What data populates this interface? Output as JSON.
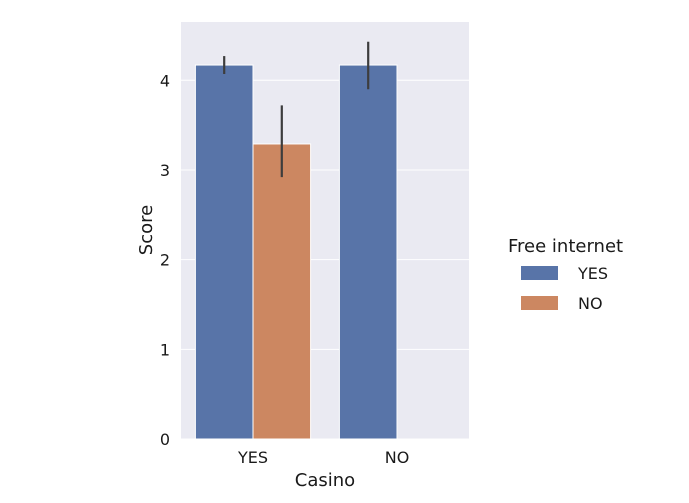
{
  "chart_data": {
    "type": "bar",
    "title": "",
    "xlabel": "Casino",
    "ylabel": "Score",
    "categories": [
      "YES",
      "NO"
    ],
    "ylim": [
      0,
      4.65
    ],
    "yticks": [
      0,
      1,
      2,
      3,
      4
    ],
    "grid": true,
    "legend": {
      "title": "Free internet",
      "placement": "right"
    },
    "series": [
      {
        "name": "YES",
        "color": "#5874a8",
        "values": [
          4.17,
          4.17
        ],
        "err_low": [
          4.07,
          3.9
        ],
        "err_high": [
          4.27,
          4.43
        ]
      },
      {
        "name": "NO",
        "color": "#cc8761",
        "values": [
          3.29,
          null
        ],
        "err_low": [
          2.92,
          null
        ],
        "err_high": [
          3.72,
          null
        ]
      }
    ]
  }
}
